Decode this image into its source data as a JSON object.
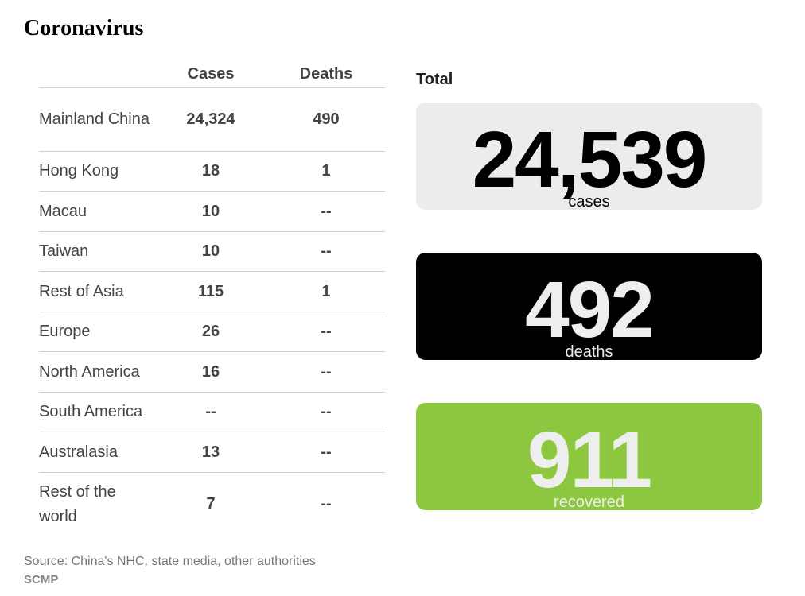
{
  "title": "Coronavirus",
  "table": {
    "headers": {
      "cases": "Cases",
      "deaths": "Deaths"
    },
    "rows": [
      {
        "region": "Mainland China",
        "cases": "24,324",
        "deaths": "490"
      },
      {
        "region": "Hong Kong",
        "cases": "18",
        "deaths": "1"
      },
      {
        "region": "Macau",
        "cases": "10",
        "deaths": "--"
      },
      {
        "region": "Taiwan",
        "cases": "10",
        "deaths": "--"
      },
      {
        "region": "Rest of Asia",
        "cases": "115",
        "deaths": "1"
      },
      {
        "region": "Europe",
        "cases": "26",
        "deaths": "--"
      },
      {
        "region": "North America",
        "cases": "16",
        "deaths": "--"
      },
      {
        "region": "South America",
        "cases": "--",
        "deaths": "--"
      },
      {
        "region": "Australasia",
        "cases": "13",
        "deaths": "--"
      },
      {
        "region": "Rest of the world",
        "cases": "7",
        "deaths": "--"
      }
    ]
  },
  "totals": {
    "label": "Total",
    "cases": {
      "value": "24,539",
      "unit": "cases"
    },
    "deaths": {
      "value": "492",
      "unit": "deaths"
    },
    "recovered": {
      "value": "911",
      "unit": "recovered"
    }
  },
  "colors": {
    "cases_bg": "#ececec",
    "cases_fg": "#000000",
    "deaths_bg": "#000000",
    "deaths_fg": "#eeeeee",
    "recovered_bg": "#8dc63f",
    "recovered_fg": "#eeeeee"
  },
  "footer": {
    "source": "Source: China's NHC, state media, other authorities",
    "credit": "SCMP"
  },
  "chart_data": {
    "type": "table",
    "columns": [
      "Cases",
      "Deaths"
    ],
    "rows": [
      {
        "region": "Mainland China",
        "cases": 24324,
        "deaths": 490
      },
      {
        "region": "Hong Kong",
        "cases": 18,
        "deaths": 1
      },
      {
        "region": "Macau",
        "cases": 10,
        "deaths": null
      },
      {
        "region": "Taiwan",
        "cases": 10,
        "deaths": null
      },
      {
        "region": "Rest of Asia",
        "cases": 115,
        "deaths": 1
      },
      {
        "region": "Europe",
        "cases": 26,
        "deaths": null
      },
      {
        "region": "North America",
        "cases": 16,
        "deaths": null
      },
      {
        "region": "South America",
        "cases": null,
        "deaths": null
      },
      {
        "region": "Australasia",
        "cases": 13,
        "deaths": null
      },
      {
        "region": "Rest of the world",
        "cases": 7,
        "deaths": null
      }
    ],
    "totals": {
      "cases": 24539,
      "deaths": 492,
      "recovered": 911
    }
  }
}
